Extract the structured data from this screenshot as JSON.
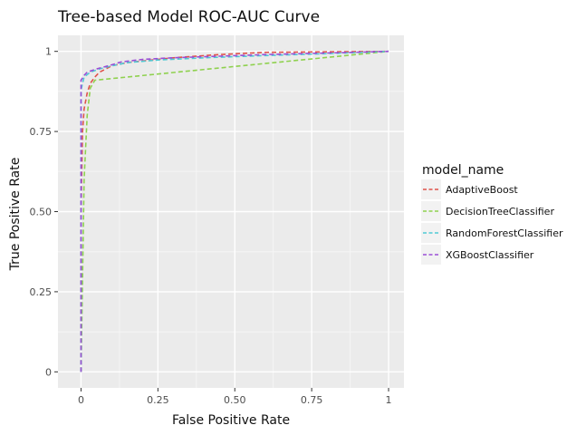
{
  "chart_data": {
    "type": "line",
    "title": "Tree-based Model ROC-AUC Curve",
    "xlabel": "False Positive Rate",
    "ylabel": "True Positive Rate",
    "xlim": [
      -0.075,
      1.05
    ],
    "ylim": [
      -0.05,
      1.05
    ],
    "x_ticks": [
      0,
      0.25,
      0.5,
      0.75,
      1
    ],
    "x_tick_labels": [
      "0",
      "0.25",
      "0.50",
      "0.75",
      "1"
    ],
    "y_ticks": [
      0,
      0.25,
      0.5,
      0.75,
      1
    ],
    "y_tick_labels": [
      "0",
      "0.25",
      "0.50",
      "0.75",
      "1"
    ],
    "grid": true,
    "legend_title": "model_name",
    "legend_position": "right",
    "line_style": "dashed",
    "series": [
      {
        "name": "AdaptiveBoost",
        "color": "#e0524b",
        "points": [
          [
            0,
            0
          ],
          [
            0,
            0.5
          ],
          [
            0.005,
            0.75
          ],
          [
            0.01,
            0.82
          ],
          [
            0.02,
            0.87
          ],
          [
            0.03,
            0.9
          ],
          [
            0.045,
            0.92
          ],
          [
            0.06,
            0.935
          ],
          [
            0.1,
            0.955
          ],
          [
            0.15,
            0.965
          ],
          [
            0.3,
            0.98
          ],
          [
            0.45,
            0.99
          ],
          [
            0.6,
            0.997
          ],
          [
            1,
            1
          ]
        ]
      },
      {
        "name": "DecisionTreeClassifier",
        "color": "#8fd14f",
        "points": [
          [
            0,
            0
          ],
          [
            0.01,
            0.6
          ],
          [
            0.02,
            0.8
          ],
          [
            0.03,
            0.885
          ],
          [
            0.045,
            0.91
          ],
          [
            1,
            1
          ]
        ]
      },
      {
        "name": "RandomForestClassifier",
        "color": "#4fc9d4",
        "points": [
          [
            0,
            0
          ],
          [
            0,
            0.88
          ],
          [
            0.01,
            0.92
          ],
          [
            0.03,
            0.935
          ],
          [
            0.06,
            0.945
          ],
          [
            0.1,
            0.955
          ],
          [
            0.15,
            0.965
          ],
          [
            0.25,
            0.973
          ],
          [
            0.4,
            0.98
          ],
          [
            0.6,
            0.987
          ],
          [
            0.8,
            0.993
          ],
          [
            1,
            1
          ]
        ]
      },
      {
        "name": "XGBoostClassifier",
        "color": "#9a4fd6",
        "points": [
          [
            0,
            0
          ],
          [
            0,
            0.91
          ],
          [
            0.01,
            0.925
          ],
          [
            0.02,
            0.935
          ],
          [
            0.05,
            0.945
          ],
          [
            0.1,
            0.958
          ],
          [
            0.13,
            0.967
          ],
          [
            0.2,
            0.975
          ],
          [
            0.3,
            0.98
          ],
          [
            0.45,
            0.985
          ],
          [
            0.6,
            0.99
          ],
          [
            0.8,
            0.995
          ],
          [
            1,
            1
          ]
        ]
      }
    ]
  }
}
